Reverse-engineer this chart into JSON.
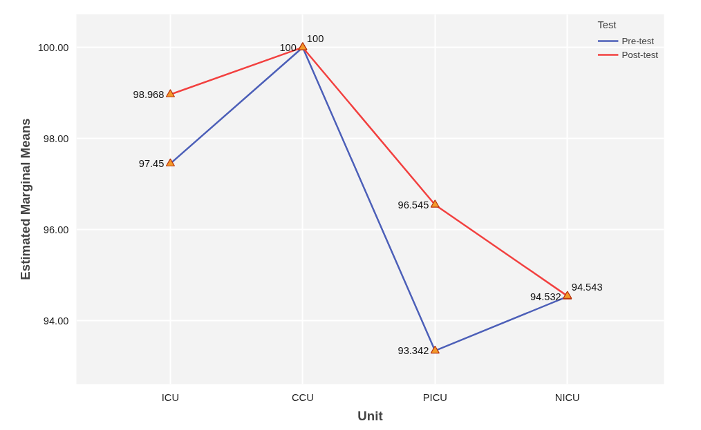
{
  "chart_data": {
    "type": "line",
    "xlabel": "Unit",
    "ylabel": "Estimated Marginal Means",
    "legend_title": "Test",
    "categories": [
      "ICU",
      "CCU",
      "PICU",
      "NICU"
    ],
    "series": [
      {
        "name": "Pre-test",
        "color": "#4c5fb8",
        "values": [
          97.45,
          100,
          93.342,
          94.532
        ]
      },
      {
        "name": "Post-test",
        "color": "#f2403f",
        "values": [
          98.968,
          100,
          96.545,
          94.543
        ]
      }
    ],
    "ylim": [
      92.61,
      100.73
    ],
    "yticks": [
      {
        "value": 94,
        "label": "94.00"
      },
      {
        "value": 96,
        "label": "96.00"
      },
      {
        "value": 98,
        "label": "98.00"
      },
      {
        "value": 100,
        "label": "100.00"
      }
    ],
    "grid": true,
    "legend": "top right",
    "marker": "triangle",
    "line_style": "solid",
    "data_labels": true
  }
}
